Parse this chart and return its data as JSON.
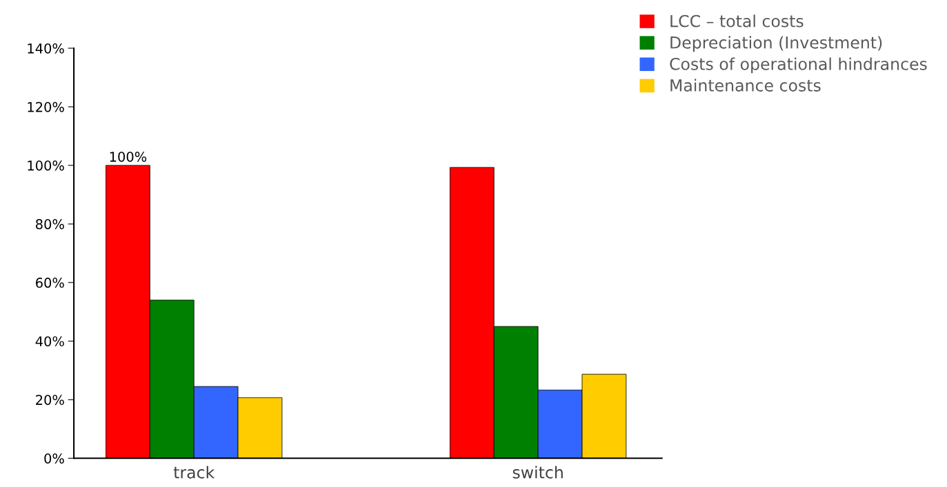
{
  "chart_data": {
    "type": "bar",
    "categories": [
      "track",
      "switch"
    ],
    "series": [
      {
        "name": "LCC – total costs",
        "color": "#ff0000",
        "values": [
          100,
          99.3
        ],
        "value_labels": [
          "100%",
          null
        ]
      },
      {
        "name": "Depreciation (Investment)",
        "color": "#008000",
        "values": [
          54,
          45
        ]
      },
      {
        "name": "Costs of operational hindrances",
        "color": "#3366ff",
        "values": [
          24.5,
          23.3
        ]
      },
      {
        "name": "Maintenance costs",
        "color": "#ffcc00",
        "values": [
          20.7,
          28.7
        ]
      }
    ],
    "ylim": [
      0,
      140
    ],
    "yticks": [
      {
        "value": 0,
        "label": "0%"
      },
      {
        "value": 20,
        "label": "20%"
      },
      {
        "value": 40,
        "label": "40%"
      },
      {
        "value": 60,
        "label": "60%"
      },
      {
        "value": 80,
        "label": "80%"
      },
      {
        "value": 100,
        "label": "100%"
      },
      {
        "value": 120,
        "label": "120%"
      },
      {
        "value": 140,
        "label": "140%"
      }
    ],
    "grid": false,
    "legend": "top right"
  }
}
